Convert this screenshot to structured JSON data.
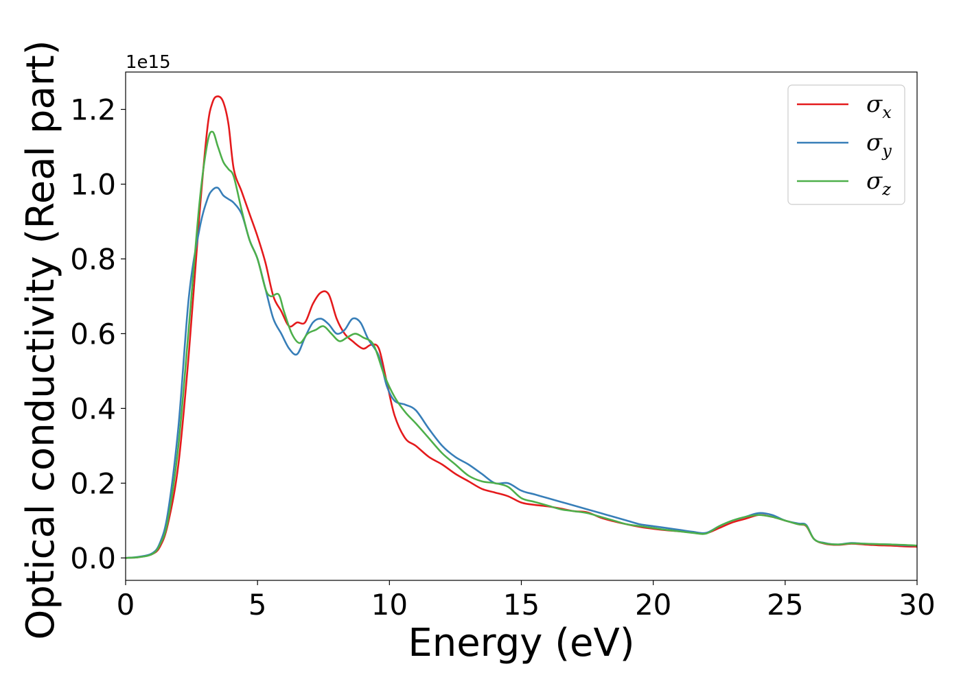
{
  "chart_data": {
    "type": "line",
    "xlabel": "Energy (eV)",
    "ylabel": "Optical conductivity (Real part)",
    "y_offset_label": "1e15",
    "xlim": [
      0,
      30
    ],
    "ylim": [
      -0.06,
      1.3
    ],
    "x_ticks": [
      0,
      5,
      10,
      15,
      20,
      25,
      30
    ],
    "x_tick_labels": [
      "0",
      "5",
      "10",
      "15",
      "20",
      "25",
      "30"
    ],
    "y_ticks": [
      0.0,
      0.2,
      0.4,
      0.6,
      0.8,
      1.0,
      1.2
    ],
    "y_tick_labels": [
      "0.0",
      "0.2",
      "0.4",
      "0.6",
      "0.8",
      "1.0",
      "1.2"
    ],
    "grid": false,
    "legend_position": "top-right",
    "series": [
      {
        "name": "σx",
        "symbol": "σ",
        "subscript": "x",
        "color": "#e41a1c",
        "x": [
          0,
          0.5,
          1,
          1.3,
          1.6,
          2,
          2.4,
          2.8,
          3.1,
          3.3,
          3.5,
          3.7,
          3.9,
          4.1,
          4.4,
          4.7,
          5.0,
          5.3,
          5.6,
          5.9,
          6.2,
          6.5,
          6.8,
          7.1,
          7.4,
          7.7,
          8.0,
          8.3,
          8.6,
          9.0,
          9.3,
          9.6,
          9.9,
          10.2,
          10.6,
          11,
          11.5,
          12,
          12.5,
          13,
          13.5,
          14,
          14.5,
          15,
          15.5,
          16,
          16.5,
          17,
          17.5,
          18,
          18.5,
          19,
          19.5,
          20,
          20.5,
          21,
          21.5,
          22,
          22.5,
          23,
          23.5,
          24,
          24.5,
          25,
          25.5,
          25.8,
          26.1,
          26.5,
          27,
          27.5,
          28,
          28.5,
          29,
          29.5,
          30
        ],
        "y": [
          0,
          0.002,
          0.01,
          0.03,
          0.09,
          0.25,
          0.55,
          0.92,
          1.15,
          1.22,
          1.235,
          1.22,
          1.16,
          1.04,
          0.98,
          0.92,
          0.86,
          0.79,
          0.7,
          0.66,
          0.62,
          0.63,
          0.63,
          0.68,
          0.71,
          0.705,
          0.64,
          0.6,
          0.58,
          0.56,
          0.57,
          0.56,
          0.47,
          0.38,
          0.32,
          0.3,
          0.27,
          0.25,
          0.225,
          0.205,
          0.185,
          0.175,
          0.165,
          0.148,
          0.142,
          0.138,
          0.132,
          0.125,
          0.122,
          0.108,
          0.098,
          0.09,
          0.083,
          0.078,
          0.074,
          0.071,
          0.068,
          0.066,
          0.08,
          0.095,
          0.105,
          0.115,
          0.11,
          0.1,
          0.09,
          0.085,
          0.05,
          0.038,
          0.035,
          0.038,
          0.036,
          0.034,
          0.033,
          0.031,
          0.03
        ]
      },
      {
        "name": "σy",
        "symbol": "σ",
        "subscript": "y",
        "color": "#377eb8",
        "x": [
          0,
          0.5,
          1,
          1.3,
          1.6,
          2,
          2.4,
          2.8,
          3.1,
          3.3,
          3.5,
          3.7,
          3.9,
          4.1,
          4.4,
          4.7,
          5.0,
          5.3,
          5.6,
          5.9,
          6.2,
          6.5,
          6.8,
          7.1,
          7.4,
          7.7,
          8.0,
          8.3,
          8.6,
          8.9,
          9.2,
          9.6,
          9.9,
          10.2,
          10.6,
          11,
          11.5,
          12,
          12.5,
          13,
          13.5,
          14,
          14.5,
          15,
          15.5,
          16,
          16.5,
          17,
          17.5,
          18,
          18.5,
          19,
          19.5,
          20,
          20.5,
          21,
          21.5,
          22,
          22.5,
          23,
          23.5,
          24,
          24.5,
          25,
          25.5,
          25.8,
          26.1,
          26.5,
          27,
          27.5,
          28,
          28.5,
          29,
          29.5,
          30
        ],
        "y": [
          0,
          0.003,
          0.012,
          0.04,
          0.12,
          0.35,
          0.7,
          0.88,
          0.96,
          0.985,
          0.99,
          0.97,
          0.96,
          0.95,
          0.92,
          0.85,
          0.8,
          0.72,
          0.64,
          0.6,
          0.56,
          0.545,
          0.59,
          0.63,
          0.64,
          0.625,
          0.6,
          0.61,
          0.64,
          0.63,
          0.585,
          0.54,
          0.46,
          0.42,
          0.41,
          0.395,
          0.345,
          0.3,
          0.27,
          0.25,
          0.225,
          0.2,
          0.2,
          0.18,
          0.17,
          0.16,
          0.15,
          0.14,
          0.13,
          0.12,
          0.11,
          0.1,
          0.09,
          0.085,
          0.08,
          0.075,
          0.07,
          0.067,
          0.085,
          0.1,
          0.11,
          0.12,
          0.115,
          0.1,
          0.092,
          0.088,
          0.05,
          0.04,
          0.036,
          0.04,
          0.038,
          0.037,
          0.036,
          0.034,
          0.033
        ]
      },
      {
        "name": "σz",
        "symbol": "σ",
        "subscript": "z",
        "color": "#4daf4a",
        "x": [
          0,
          0.5,
          1,
          1.3,
          1.6,
          2,
          2.4,
          2.8,
          3.1,
          3.3,
          3.5,
          3.7,
          3.9,
          4.1,
          4.4,
          4.7,
          5.0,
          5.3,
          5.5,
          5.8,
          6.0,
          6.3,
          6.6,
          6.9,
          7.2,
          7.5,
          7.8,
          8.1,
          8.4,
          8.7,
          9.0,
          9.4,
          9.8,
          10.2,
          10.6,
          11,
          11.5,
          12,
          12.5,
          13,
          13.5,
          14,
          14.5,
          15,
          15.5,
          16,
          16.5,
          17,
          17.5,
          18,
          18.5,
          19,
          19.5,
          20,
          20.5,
          21,
          21.5,
          22,
          22.5,
          23,
          23.5,
          24,
          24.5,
          25,
          25.5,
          25.8,
          26.1,
          26.5,
          27,
          27.5,
          28,
          28.5,
          29,
          29.5,
          30
        ],
        "y": [
          0,
          0.002,
          0.01,
          0.035,
          0.1,
          0.3,
          0.62,
          0.95,
          1.11,
          1.14,
          1.1,
          1.06,
          1.04,
          1.02,
          0.93,
          0.85,
          0.8,
          0.72,
          0.7,
          0.705,
          0.66,
          0.6,
          0.575,
          0.6,
          0.61,
          0.62,
          0.6,
          0.58,
          0.59,
          0.6,
          0.59,
          0.57,
          0.49,
          0.43,
          0.39,
          0.36,
          0.32,
          0.28,
          0.25,
          0.22,
          0.205,
          0.2,
          0.19,
          0.16,
          0.15,
          0.14,
          0.13,
          0.125,
          0.12,
          0.11,
          0.1,
          0.09,
          0.085,
          0.08,
          0.075,
          0.071,
          0.067,
          0.065,
          0.085,
          0.1,
          0.11,
          0.115,
          0.11,
          0.1,
          0.09,
          0.086,
          0.05,
          0.039,
          0.036,
          0.039,
          0.038,
          0.037,
          0.036,
          0.035,
          0.033
        ]
      }
    ]
  }
}
